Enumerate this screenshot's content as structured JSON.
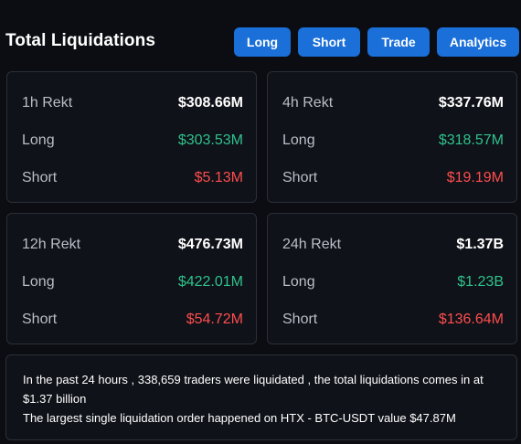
{
  "header": {
    "title": "Total Liquidations",
    "buttons": {
      "long": "Long",
      "short": "Short",
      "trade": "Trade",
      "analytics": "Analytics"
    }
  },
  "cards": [
    {
      "period": "1h Rekt",
      "total": "$308.66M",
      "long_label": "Long",
      "long_value": "$303.53M",
      "short_label": "Short",
      "short_value": "$5.13M"
    },
    {
      "period": "4h Rekt",
      "total": "$337.76M",
      "long_label": "Long",
      "long_value": "$318.57M",
      "short_label": "Short",
      "short_value": "$19.19M"
    },
    {
      "period": "12h Rekt",
      "total": "$476.73M",
      "long_label": "Long",
      "long_value": "$422.01M",
      "short_label": "Short",
      "short_value": "$54.72M"
    },
    {
      "period": "24h Rekt",
      "total": "$1.37B",
      "long_label": "Long",
      "long_value": "$1.23B",
      "short_label": "Short",
      "short_value": "$136.64M"
    }
  ],
  "summary": {
    "line1": "In the past 24 hours , 338,659 traders were liquidated , the total liquidations comes in at $1.37 billion",
    "line2": "The largest single liquidation order happened on HTX - BTC-USDT value $47.87M"
  },
  "colors": {
    "accent": "#1a6fd9",
    "positive": "#2fc28c",
    "negative": "#ff4d4f",
    "background": "#0b0d12",
    "card_border": "#2b2f38"
  }
}
